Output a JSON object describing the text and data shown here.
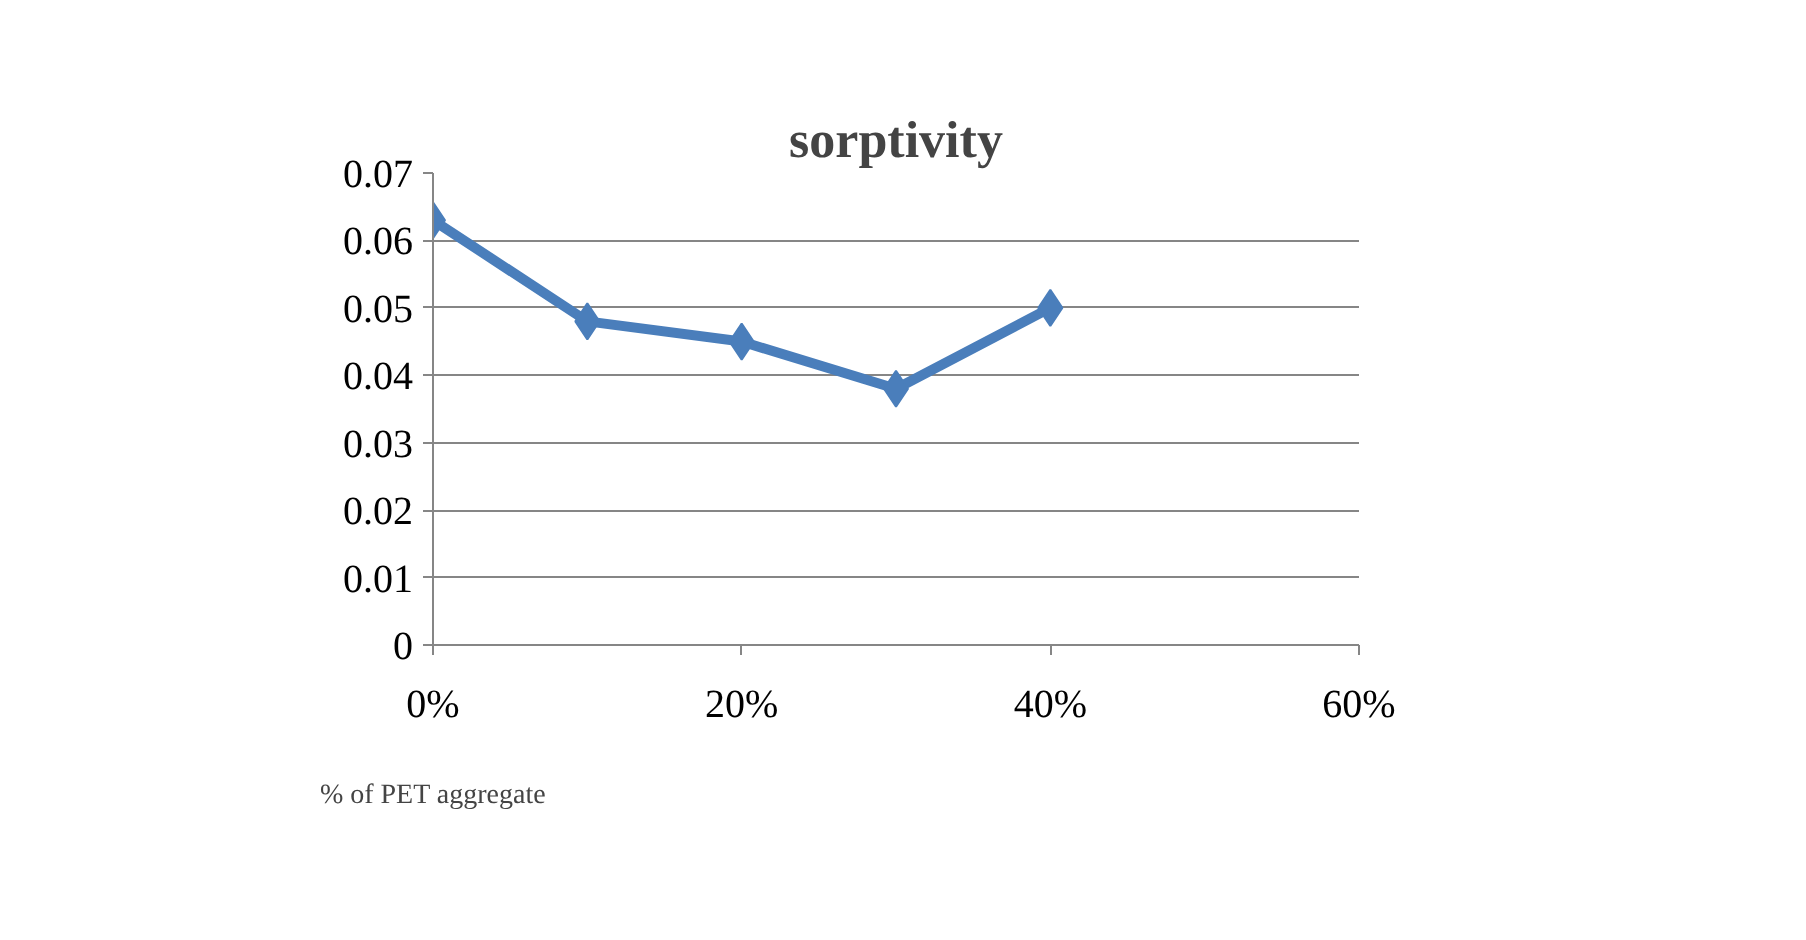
{
  "chart_data": {
    "type": "line",
    "title": "sorptivity",
    "xlabel": "% of PET aggregate",
    "x": [
      0,
      0.1,
      0.2,
      0.3,
      0.4
    ],
    "series": [
      {
        "color": "#4a7ebb",
        "values": [
          0.063,
          0.048,
          0.045,
          0.038,
          0.05
        ]
      }
    ],
    "xlim": [
      0,
      0.6
    ],
    "xticks": [
      {
        "value": 0,
        "label": "0%"
      },
      {
        "value": 0.2,
        "label": "20%"
      },
      {
        "value": 0.4,
        "label": "40%"
      },
      {
        "value": 0.6,
        "label": "60%"
      }
    ],
    "ylim": [
      0,
      0.07
    ],
    "yticks": [
      0,
      0.01,
      0.02,
      0.03,
      0.04,
      0.05,
      0.06,
      0.07
    ],
    "grid": "y",
    "marker": "diamond",
    "line_style": "solid"
  }
}
